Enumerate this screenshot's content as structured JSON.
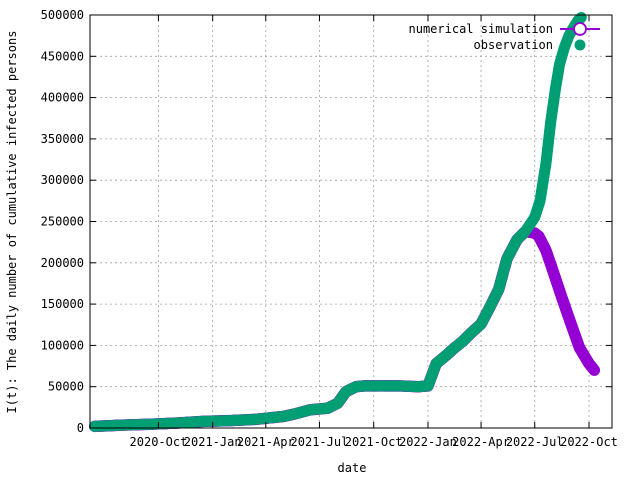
{
  "chart_data": {
    "type": "scatter",
    "title": "",
    "xlabel": "date",
    "ylabel": "I(t): The daily number of cumulative infected persons",
    "ylim": [
      0,
      500000
    ],
    "yticks": [
      0,
      50000,
      100000,
      150000,
      200000,
      250000,
      300000,
      350000,
      400000,
      450000,
      500000
    ],
    "xlim": [
      "2020-06-07",
      "2022-11-09"
    ],
    "xticks": [
      {
        "date": "2020-10-01",
        "label": "2020-Oct"
      },
      {
        "date": "2021-01-01",
        "label": "2021-Jan"
      },
      {
        "date": "2021-04-01",
        "label": "2021-Apr"
      },
      {
        "date": "2021-07-01",
        "label": "2021-Jul"
      },
      {
        "date": "2021-10-01",
        "label": "2021-Oct"
      },
      {
        "date": "2022-01-01",
        "label": "2022-Jan"
      },
      {
        "date": "2022-04-01",
        "label": "2022-Apr"
      },
      {
        "date": "2022-07-01",
        "label": "2022-Jul"
      },
      {
        "date": "2022-10-01",
        "label": "2022-Oct"
      }
    ],
    "grid": true,
    "legend_position": "top-right",
    "series": [
      {
        "name": "numerical simulation",
        "color": "#9400d3",
        "marker": "open-circle-line",
        "x": [
          "2020-06-15",
          "2020-08-01",
          "2020-09-15",
          "2020-11-01",
          "2020-12-15",
          "2021-02-01",
          "2021-03-15",
          "2021-05-01",
          "2021-05-20",
          "2021-06-15",
          "2021-07-15",
          "2021-08-01",
          "2021-08-15",
          "2021-09-01",
          "2021-09-15",
          "2021-10-15",
          "2021-11-15",
          "2021-12-15",
          "2022-01-01",
          "2022-01-15",
          "2022-02-01",
          "2022-02-15",
          "2022-03-01",
          "2022-03-15",
          "2022-04-01",
          "2022-04-15",
          "2022-05-01",
          "2022-05-15",
          "2022-06-01",
          "2022-06-15",
          "2022-07-01",
          "2022-07-08",
          "2022-07-20",
          "2022-08-01",
          "2022-08-15",
          "2022-09-01",
          "2022-09-15",
          "2022-10-01",
          "2022-10-10"
        ],
        "values": [
          2000,
          3500,
          4500,
          6000,
          8000,
          9000,
          10500,
          14000,
          17000,
          22000,
          24000,
          30000,
          44000,
          50000,
          51000,
          51000,
          51000,
          50000,
          51000,
          78000,
          88000,
          97000,
          105000,
          115000,
          126000,
          145000,
          168000,
          205000,
          228000,
          238000,
          236000,
          232000,
          215000,
          190000,
          160000,
          125000,
          97000,
          78000,
          70000
        ]
      },
      {
        "name": "observation",
        "color": "#009e73",
        "marker": "filled-circle",
        "x": [
          "2020-06-15",
          "2020-08-01",
          "2020-09-15",
          "2020-11-01",
          "2020-12-15",
          "2021-02-01",
          "2021-03-15",
          "2021-05-01",
          "2021-05-20",
          "2021-06-15",
          "2021-07-15",
          "2021-08-01",
          "2021-08-15",
          "2021-09-01",
          "2021-09-15",
          "2021-10-15",
          "2021-11-15",
          "2021-12-15",
          "2022-01-01",
          "2022-01-15",
          "2022-02-01",
          "2022-02-15",
          "2022-03-01",
          "2022-03-15",
          "2022-04-01",
          "2022-04-15",
          "2022-05-01",
          "2022-05-15",
          "2022-06-01",
          "2022-06-15",
          "2022-07-01",
          "2022-07-10",
          "2022-07-20",
          "2022-07-28",
          "2022-08-05",
          "2022-08-12",
          "2022-08-20",
          "2022-08-28",
          "2022-09-05",
          "2022-09-12",
          "2022-09-18"
        ],
        "values": [
          2000,
          3500,
          4500,
          6000,
          8000,
          9000,
          10500,
          14000,
          17000,
          22000,
          24000,
          30000,
          44000,
          50000,
          51000,
          51000,
          51000,
          50000,
          51000,
          78000,
          88000,
          97000,
          105000,
          115000,
          126000,
          145000,
          168000,
          205000,
          228000,
          238000,
          255000,
          275000,
          320000,
          370000,
          410000,
          440000,
          460000,
          475000,
          485000,
          493000,
          497000
        ]
      }
    ]
  }
}
